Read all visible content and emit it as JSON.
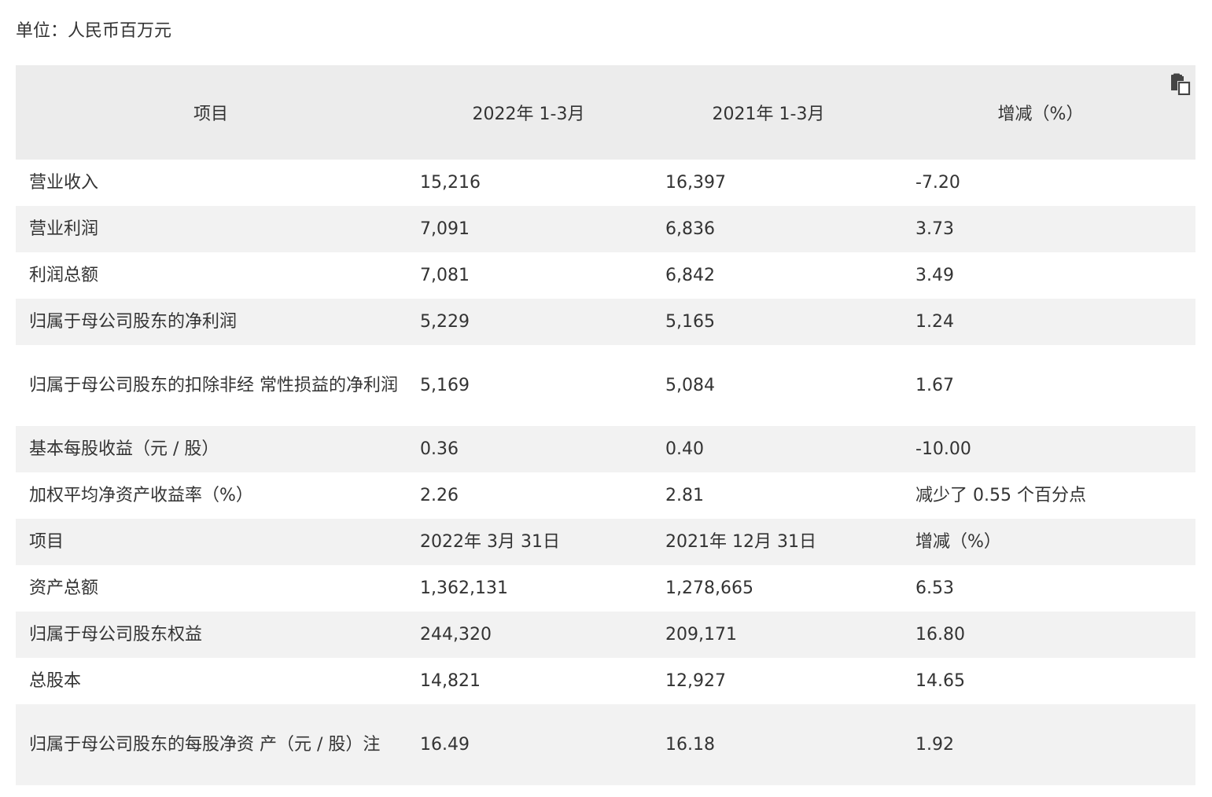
{
  "unit_label": "单位：人民币百万元",
  "toolbar": {
    "copy_icon": "copy-icon"
  },
  "header": {
    "col1": "项目",
    "col2": "2022年 1-3月",
    "col3": "2021年 1-3月",
    "col4": "增减（%）"
  },
  "rows": [
    {
      "name": "营业收入",
      "v1": "15,216",
      "v2": "16,397",
      "v3": "-7.20"
    },
    {
      "name": "营业利润",
      "v1": "7,091",
      "v2": "6,836",
      "v3": "3.73"
    },
    {
      "name": "利润总额",
      "v1": "7,081",
      "v2": "6,842",
      "v3": "3.49"
    },
    {
      "name": "归属于母公司股东的净利润",
      "v1": "5,229",
      "v2": "5,165",
      "v3": "1.24"
    },
    {
      "name": "归属于母公司股东的扣除非经 常性损益的净利润",
      "v1": "5,169",
      "v2": "5,084",
      "v3": "1.67"
    },
    {
      "name": "基本每股收益（元 / 股）",
      "v1": "0.36",
      "v2": "0.40",
      "v3": "-10.00"
    },
    {
      "name": "加权平均净资产收益率（%）",
      "v1": "2.26",
      "v2": "2.81",
      "v3": "减少了 0.55 个百分点"
    },
    {
      "name": "项目",
      "v1": "2022年 3月 31日",
      "v2": "2021年 12月 31日",
      "v3": "增减（%）"
    },
    {
      "name": "资产总额",
      "v1": "1,362,131",
      "v2": "1,278,665",
      "v3": "6.53"
    },
    {
      "name": "归属于母公司股东权益",
      "v1": "244,320",
      "v2": "209,171",
      "v3": "16.80"
    },
    {
      "name": "总股本",
      "v1": "14,821",
      "v2": "12,927",
      "v3": "14.65"
    },
    {
      "name": "归属于母公司股东的每股净资 产（元 / 股）注",
      "v1": "16.49",
      "v2": "16.18",
      "v3": "1.92"
    }
  ]
}
